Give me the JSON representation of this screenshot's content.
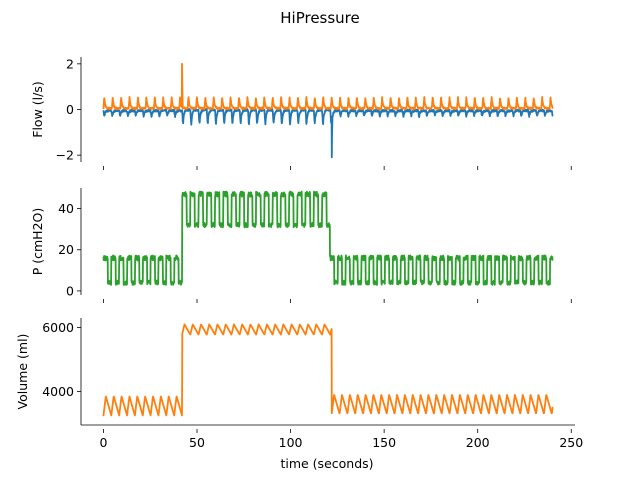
{
  "chart_data": {
    "type": "line",
    "title": "HiPressure",
    "shared_x": {
      "label": "time (seconds)",
      "range": [
        -12,
        252
      ],
      "ticks": [
        0,
        50,
        100,
        150,
        200,
        250
      ],
      "tick_labels": [
        "0",
        "50",
        "100",
        "150",
        "200",
        "250"
      ]
    },
    "panels": [
      {
        "id": "flow",
        "ylabel": "Flow (l/s)",
        "ylim": [
          -2.3,
          2.3
        ],
        "yticks": [
          -2,
          0,
          2
        ],
        "ytick_labels": [
          "−2",
          "0",
          "2"
        ],
        "series": [
          {
            "color": "#1f77b4",
            "kind": "breath_trough",
            "segments": [
              {
                "t_start": 0,
                "t_end": 42,
                "period": 4.2,
                "baseline": -0.05,
                "trough": -0.3
              },
              {
                "t_start": 42,
                "t_end": 122,
                "period": 4.4,
                "baseline": -0.02,
                "trough": -0.65
              },
              {
                "t_start": 122,
                "t_end": 240,
                "period": 4.2,
                "baseline": -0.05,
                "trough": -0.3
              }
            ],
            "events": [
              {
                "t": 122,
                "value": -2.1
              }
            ]
          },
          {
            "color": "#ff7f0e",
            "kind": "breath_peak",
            "segments": [
              {
                "t_start": 0,
                "t_end": 240,
                "period": 4.5,
                "baseline": 0.05,
                "peak": 0.55
              }
            ],
            "events": [
              {
                "t": 42,
                "value": 2.0
              }
            ]
          }
        ]
      },
      {
        "id": "pressure",
        "ylabel": "P (cmH2O)",
        "ylim": [
          -2,
          50
        ],
        "yticks": [
          0,
          20,
          40
        ],
        "ytick_labels": [
          "0",
          "20",
          "40"
        ],
        "series": [
          {
            "color": "#2ca02c",
            "kind": "square_wave",
            "segments": [
              {
                "t_start": 0,
                "t_end": 42,
                "period": 4.2,
                "low": 4,
                "high": 16
              },
              {
                "t_start": 42,
                "t_end": 121,
                "period": 4.4,
                "low": 32,
                "high": 47
              },
              {
                "t_start": 121,
                "t_end": 240,
                "period": 4.2,
                "low": 4,
                "high": 16
              }
            ]
          }
        ]
      },
      {
        "id": "volume",
        "ylabel": "Volume (ml)",
        "ylim": [
          2950,
          6300
        ],
        "yticks": [
          4000,
          6000
        ],
        "ytick_labels": [
          "4000",
          "6000"
        ],
        "series": [
          {
            "color": "#ff7f0e",
            "kind": "sawtooth",
            "segments": [
              {
                "t_start": 0,
                "t_end": 42,
                "period": 4.2,
                "low": 3250,
                "high": 3850
              },
              {
                "t_start": 42,
                "t_end": 122,
                "period": 4.4,
                "low": 5780,
                "high": 6100
              },
              {
                "t_start": 122,
                "t_end": 240,
                "period": 4.2,
                "low": 3300,
                "high": 3900
              }
            ]
          }
        ]
      }
    ]
  }
}
